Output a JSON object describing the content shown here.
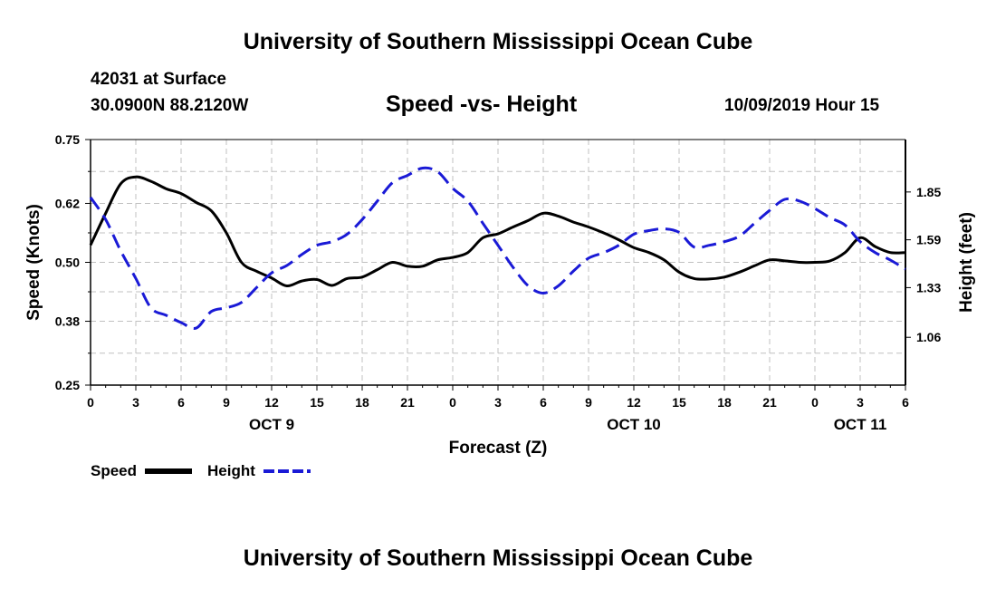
{
  "header": {
    "title": "University of Southern Mississippi Ocean Cube",
    "station": "42031 at Surface",
    "coords": "30.0900N 88.2120W",
    "subtitle": "Speed -vs- Height",
    "datetime": "10/09/2019 Hour 15"
  },
  "footer": {
    "title": "University of Southern Mississippi Ocean Cube"
  },
  "colors": {
    "speed": "#000000",
    "height": "#1a1ad6",
    "grid": "#c0c0c0"
  },
  "chart_data": {
    "type": "line",
    "title": "Speed -vs- Height",
    "xlabel": "Forecast (Z)",
    "ylabel": "Speed (Knots)",
    "y2label": "Height (feet)",
    "xlim": [
      0,
      54
    ],
    "ylim": [
      0.25,
      0.75
    ],
    "y2lim": [
      0.8,
      2.135
    ],
    "grid": true,
    "x_ticks": [
      0,
      3,
      6,
      9,
      12,
      15,
      18,
      21,
      24,
      27,
      30,
      33,
      36,
      39,
      42,
      45,
      48,
      51,
      54
    ],
    "x_tick_labels": [
      "0",
      "3",
      "6",
      "9",
      "12",
      "15",
      "18",
      "21",
      "0",
      "3",
      "6",
      "9",
      "12",
      "15",
      "18",
      "21",
      "0",
      "3",
      "6"
    ],
    "date_labels": [
      {
        "x": 12,
        "label": "OCT 9"
      },
      {
        "x": 36,
        "label": "OCT 10"
      },
      {
        "x": 51,
        "label": "OCT 11"
      }
    ],
    "y_ticks": [
      0.25,
      0.38,
      0.5,
      0.62,
      0.75
    ],
    "y_tick_labels": [
      "0.25",
      "0.38",
      "0.50",
      "0.62",
      "0.75"
    ],
    "y2_ticks": [
      1.06,
      1.33,
      1.59,
      1.85
    ],
    "y2_tick_labels": [
      "1.06",
      "1.33",
      "1.59",
      "1.85"
    ],
    "series": [
      {
        "name": "Speed",
        "axis": "left",
        "style": "solid",
        "x": [
          0,
          1,
          2,
          3,
          4,
          5,
          6,
          7,
          8,
          9,
          10,
          11,
          12,
          13,
          14,
          15,
          16,
          17,
          18,
          19,
          20,
          21,
          22,
          23,
          24,
          25,
          26,
          27,
          28,
          29,
          30,
          31,
          32,
          33,
          34,
          35,
          36,
          37,
          38,
          39,
          40,
          41,
          42,
          43,
          44,
          45,
          46,
          47,
          48,
          49,
          50,
          51,
          52,
          53,
          54
        ],
        "values": [
          0.535,
          0.6,
          0.66,
          0.674,
          0.665,
          0.65,
          0.64,
          0.622,
          0.605,
          0.56,
          0.5,
          0.482,
          0.468,
          0.452,
          0.462,
          0.465,
          0.453,
          0.467,
          0.47,
          0.485,
          0.5,
          0.492,
          0.492,
          0.505,
          0.51,
          0.52,
          0.55,
          0.558,
          0.572,
          0.585,
          0.6,
          0.594,
          0.582,
          0.572,
          0.56,
          0.546,
          0.53,
          0.52,
          0.505,
          0.48,
          0.467,
          0.466,
          0.47,
          0.48,
          0.493,
          0.505,
          0.503,
          0.5,
          0.5,
          0.503,
          0.52,
          0.55,
          0.532,
          0.52,
          0.52
        ]
      },
      {
        "name": "Height",
        "axis": "right",
        "style": "dashed",
        "x": [
          0,
          1,
          2,
          3,
          4,
          5,
          6,
          7,
          8,
          9,
          10,
          11,
          12,
          13,
          14,
          15,
          16,
          17,
          18,
          19,
          20,
          21,
          22,
          23,
          24,
          25,
          26,
          27,
          28,
          29,
          30,
          31,
          32,
          33,
          34,
          35,
          36,
          37,
          38,
          39,
          40,
          41,
          42,
          43,
          44,
          45,
          46,
          47,
          48,
          49,
          50,
          51,
          52,
          53,
          54
        ],
        "values": [
          1.82,
          1.7,
          1.53,
          1.38,
          1.22,
          1.18,
          1.14,
          1.11,
          1.2,
          1.22,
          1.25,
          1.33,
          1.41,
          1.45,
          1.51,
          1.56,
          1.58,
          1.62,
          1.7,
          1.8,
          1.9,
          1.94,
          1.98,
          1.96,
          1.87,
          1.8,
          1.68,
          1.56,
          1.44,
          1.34,
          1.3,
          1.34,
          1.42,
          1.49,
          1.52,
          1.56,
          1.62,
          1.64,
          1.65,
          1.63,
          1.55,
          1.56,
          1.58,
          1.61,
          1.68,
          1.75,
          1.81,
          1.8,
          1.76,
          1.71,
          1.67,
          1.58,
          1.52,
          1.48,
          1.43
        ]
      }
    ]
  },
  "legend": {
    "speed_label": "Speed",
    "height_label": "Height"
  }
}
